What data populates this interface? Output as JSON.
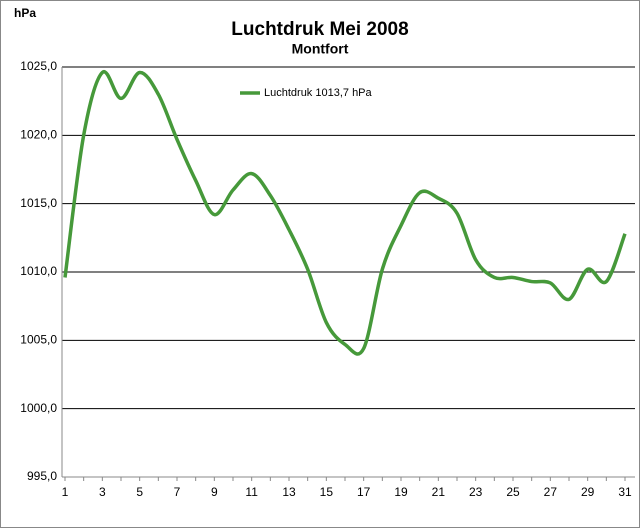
{
  "chart_data": {
    "type": "line",
    "title": "Luchtdruk Mei 2008",
    "subtitle": "Montfort",
    "y_label": "hPa",
    "categories": [
      "1",
      null,
      "3",
      null,
      "5",
      null,
      "7",
      null,
      "9",
      null,
      "11",
      null,
      "13",
      null,
      "15",
      null,
      "17",
      null,
      "19",
      null,
      "21",
      null,
      "23",
      null,
      "25",
      null,
      "27",
      null,
      "29",
      null,
      "31"
    ],
    "series": [
      {
        "name": "Luchtdruk 1013,7 hPa",
        "color": "#46993a",
        "values": [
          1009.6,
          1020.0,
          1024.6,
          1022.7,
          1024.6,
          1023.0,
          1019.7,
          1016.7,
          1014.2,
          1016.0,
          1017.2,
          1015.6,
          1013.1,
          1010.2,
          1006.3,
          1004.7,
          1004.4,
          1010.2,
          1013.4,
          1015.8,
          1015.4,
          1014.3,
          1010.9,
          1009.6,
          1009.6,
          1009.3,
          1009.2,
          1008.0,
          1010.2,
          1009.3,
          1012.8
        ]
      }
    ],
    "ylim": [
      995,
      1025
    ],
    "yticks": [
      {
        "value": 995,
        "label": "995,0"
      },
      {
        "value": 1000,
        "label": "1000,0"
      },
      {
        "value": 1005,
        "label": "1005,0"
      },
      {
        "value": 1010,
        "label": "1010,0"
      },
      {
        "value": 1015,
        "label": "1015,0"
      },
      {
        "value": 1020,
        "label": "1020,0"
      },
      {
        "value": 1025,
        "label": "1025,0"
      }
    ],
    "grid": true,
    "legend": "top-left"
  }
}
